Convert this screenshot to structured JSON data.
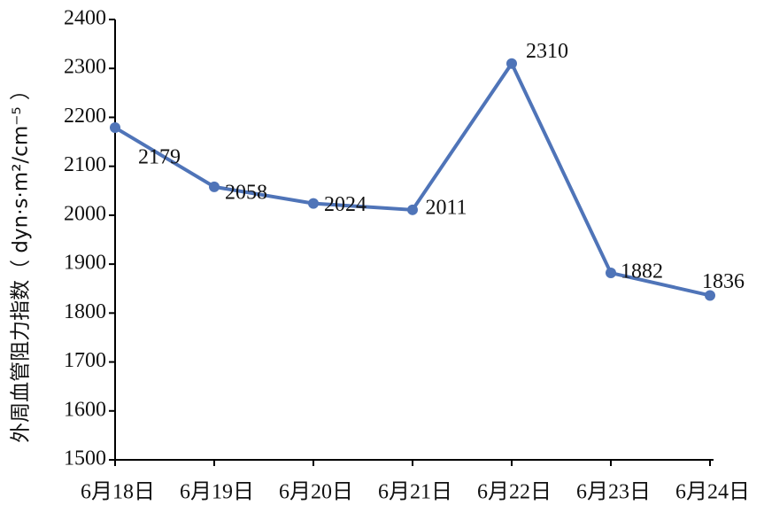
{
  "chart_data": {
    "type": "line",
    "y_label": "外周血管阻力指数（ dyn·s·m²/cm⁻⁵ ）",
    "categories": [
      "6月18日",
      "6月19日",
      "6月20日",
      "6月21日",
      "6月22日",
      "6月23日",
      "6月24日"
    ],
    "values": [
      2179,
      2058,
      2024,
      2011,
      2310,
      1882,
      1836
    ],
    "color": "#4f74b8",
    "ylim": [
      1500,
      2400
    ],
    "yticks": [
      1500,
      1600,
      1700,
      1800,
      1900,
      2000,
      2100,
      2200,
      2300,
      2400
    ],
    "grid": false
  }
}
